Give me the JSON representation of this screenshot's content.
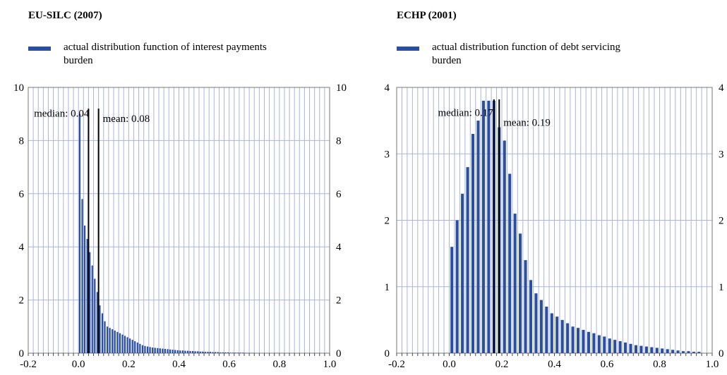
{
  "chart_data": [
    {
      "type": "bar",
      "title": "EU-SILC (2007)",
      "legend": "actual distribution function of interest payments burden",
      "xlim": [
        -0.2,
        1.0
      ],
      "ylim": [
        0,
        10
      ],
      "x_ticks": [
        "-0.2",
        "0.0",
        "0.2",
        "0.4",
        "0.6",
        "0.8",
        "1.0"
      ],
      "y_ticks": [
        "0",
        "2",
        "4",
        "6",
        "8",
        "10"
      ],
      "bin_width": 0.01,
      "x_start": 0.0,
      "values": [
        9.0,
        5.8,
        4.8,
        4.3,
        3.8,
        3.3,
        2.8,
        2.3,
        1.8,
        1.5,
        1.2,
        1.0,
        0.95,
        0.9,
        0.85,
        0.8,
        0.75,
        0.7,
        0.65,
        0.6,
        0.55,
        0.5,
        0.45,
        0.4,
        0.35,
        0.3,
        0.27,
        0.25,
        0.23,
        0.21,
        0.2,
        0.19,
        0.18,
        0.17,
        0.16,
        0.15,
        0.14,
        0.13,
        0.12,
        0.11,
        0.1,
        0.1,
        0.09,
        0.09,
        0.08,
        0.08,
        0.07,
        0.07,
        0.06,
        0.06,
        0.05,
        0.05,
        0.05,
        0.04,
        0.04,
        0.04,
        0.03,
        0.03,
        0.03,
        0.03,
        0.02,
        0.02,
        0.02,
        0.02,
        0.02,
        0.02,
        0.01,
        0.01,
        0.01,
        0.01
      ],
      "vlines": [
        {
          "label": "median: 0.04",
          "x": 0.04,
          "y_top": 9.2
        },
        {
          "label": "mean: 0.08",
          "x": 0.08,
          "y_top": 9.2
        }
      ],
      "colors": {
        "bar": "#2a4fa0",
        "grid": "#aab4dd",
        "axis": "#777777",
        "line": "#000000"
      }
    },
    {
      "type": "bar",
      "title": "ECHP (2001)",
      "legend": "actual distribution function of debt servicing burden",
      "xlim": [
        -0.2,
        1.0
      ],
      "ylim": [
        0,
        4
      ],
      "x_ticks": [
        "-0.2",
        "0.0",
        "0.2",
        "0.4",
        "0.6",
        "0.8",
        "1.0"
      ],
      "y_ticks": [
        "0",
        "1",
        "2",
        "3",
        "4"
      ],
      "bin_width": 0.02,
      "x_start": 0.0,
      "values": [
        1.6,
        2.0,
        2.4,
        2.8,
        3.3,
        3.5,
        3.8,
        3.8,
        3.8,
        3.4,
        3.2,
        2.7,
        2.1,
        1.8,
        1.4,
        1.1,
        0.9,
        0.8,
        0.7,
        0.6,
        0.55,
        0.5,
        0.45,
        0.4,
        0.38,
        0.35,
        0.32,
        0.3,
        0.27,
        0.25,
        0.22,
        0.2,
        0.18,
        0.16,
        0.14,
        0.12,
        0.11,
        0.1,
        0.09,
        0.08,
        0.07,
        0.06,
        0.05,
        0.04,
        0.03,
        0.03,
        0.02,
        0.02
      ],
      "vlines": [
        {
          "label": "median: 0.17",
          "x": 0.17,
          "y_top": 3.82
        },
        {
          "label": "mean: 0.19",
          "x": 0.19,
          "y_top": 3.82
        }
      ],
      "colors": {
        "bar": "#2a4fa0",
        "grid": "#aab4dd",
        "axis": "#777777",
        "line": "#000000"
      }
    }
  ]
}
